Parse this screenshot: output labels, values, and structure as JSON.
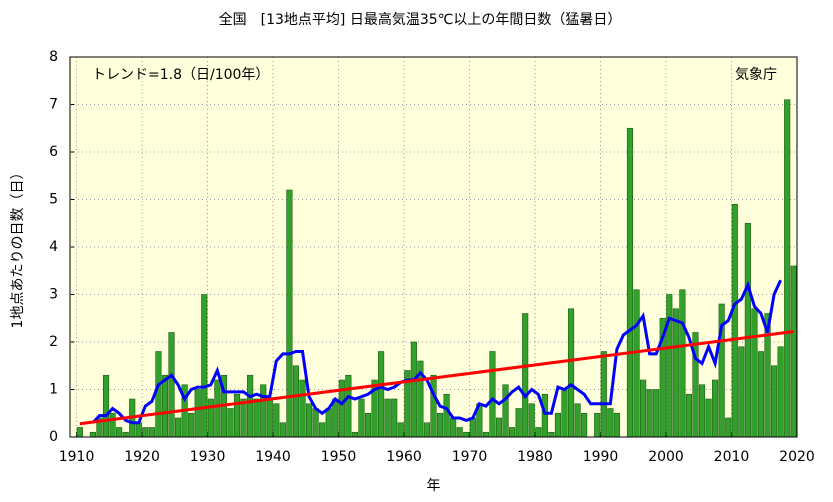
{
  "chart_data": {
    "type": "bar",
    "title": "全国　[13地点平均] 日最高気温35℃以上の年間日数（猛暑日）",
    "xlabel": "年",
    "ylabel": "1地点あたりの日数（日）",
    "annotations": [
      "トレンド=1.8（日/100年）",
      "気象庁"
    ],
    "x": [
      1910,
      1911,
      1912,
      1913,
      1914,
      1915,
      1916,
      1917,
      1918,
      1919,
      1920,
      1921,
      1922,
      1923,
      1924,
      1925,
      1926,
      1927,
      1928,
      1929,
      1930,
      1931,
      1932,
      1933,
      1934,
      1935,
      1936,
      1937,
      1938,
      1939,
      1940,
      1941,
      1942,
      1943,
      1944,
      1945,
      1946,
      1947,
      1948,
      1949,
      1950,
      1951,
      1952,
      1953,
      1954,
      1955,
      1956,
      1957,
      1958,
      1959,
      1960,
      1961,
      1962,
      1963,
      1964,
      1965,
      1966,
      1967,
      1968,
      1969,
      1970,
      1971,
      1972,
      1973,
      1974,
      1975,
      1976,
      1977,
      1978,
      1979,
      1980,
      1981,
      1982,
      1983,
      1984,
      1985,
      1986,
      1987,
      1988,
      1989,
      1990,
      1991,
      1992,
      1993,
      1994,
      1995,
      1996,
      1997,
      1998,
      1999,
      2000,
      2001,
      2002,
      2003,
      2004,
      2005,
      2006,
      2007,
      2008,
      2009,
      2010,
      2011,
      2012,
      2013,
      2014,
      2015,
      2016,
      2017,
      2018,
      2019
    ],
    "bars": {
      "color": "#33a02c",
      "edge": "#1a5c16",
      "values": [
        0.2,
        0,
        0.1,
        0.4,
        1.3,
        0.5,
        0.2,
        0.1,
        0.8,
        0.3,
        0.2,
        0.2,
        1.8,
        1.3,
        2.2,
        0.4,
        1.1,
        0.5,
        1.0,
        3.0,
        0.8,
        1.2,
        1.3,
        0.6,
        0.9,
        0.8,
        1.3,
        0.8,
        1.1,
        0.8,
        0.7,
        0.3,
        5.2,
        1.5,
        1.2,
        0.7,
        0.6,
        0.3,
        0.6,
        0.8,
        1.2,
        1.3,
        0.1,
        0.8,
        0.5,
        1.2,
        1.8,
        0.8,
        0.8,
        0.3,
        1.4,
        2.0,
        1.6,
        0.3,
        1.3,
        0.5,
        0.9,
        0.4,
        0.2,
        0.1,
        0.4,
        0.7,
        0.1,
        1.8,
        0.4,
        1.1,
        0.2,
        0.6,
        2.6,
        0.7,
        0.2,
        0.9,
        0.1,
        0.5,
        1.0,
        2.7,
        0.7,
        0.5,
        0,
        0.5,
        1.8,
        0.6,
        0.5,
        0,
        6.5,
        3.1,
        1.2,
        1.0,
        1.0,
        2.5,
        3.0,
        2.7,
        3.1,
        0.9,
        2.2,
        1.1,
        0.8,
        1.2,
        2.8,
        0.4,
        4.9,
        1.9,
        4.5,
        2.7,
        1.8,
        2.6,
        1.5,
        1.9,
        7.1,
        3.6
      ]
    },
    "moving_average": {
      "color": "#0000ff",
      "values": [
        null,
        null,
        0.3,
        0.45,
        0.45,
        0.6,
        0.5,
        0.35,
        0.3,
        0.3,
        0.65,
        0.75,
        1.1,
        1.2,
        1.3,
        1.1,
        0.8,
        1.0,
        1.05,
        1.05,
        1.1,
        1.4,
        0.95,
        0.95,
        0.95,
        0.95,
        0.85,
        0.9,
        0.85,
        0.85,
        1.6,
        1.75,
        1.75,
        1.8,
        1.8,
        0.85,
        0.6,
        0.5,
        0.6,
        0.8,
        0.7,
        0.85,
        0.8,
        0.85,
        0.9,
        1.0,
        1.05,
        1.0,
        1.05,
        1.15,
        1.2,
        1.2,
        1.35,
        1.2,
        0.9,
        0.65,
        0.6,
        0.4,
        0.4,
        0.35,
        0.4,
        0.7,
        0.65,
        0.8,
        0.7,
        0.8,
        0.95,
        1.05,
        0.85,
        1.0,
        0.9,
        0.5,
        0.5,
        1.05,
        1.0,
        1.1,
        1.0,
        0.9,
        0.7,
        0.7,
        0.7,
        0.7,
        1.85,
        2.15,
        2.25,
        2.35,
        2.55,
        1.75,
        1.75,
        2.1,
        2.5,
        2.45,
        2.4,
        2.1,
        1.65,
        1.55,
        1.9,
        1.55,
        2.35,
        2.45,
        2.8,
        2.9,
        3.2,
        2.75,
        2.6,
        2.2,
        3.0,
        3.3,
        null,
        null
      ]
    },
    "trend": {
      "color": "#ff0000",
      "x": [
        1910,
        2019
      ],
      "values": [
        0.28,
        2.22
      ]
    },
    "xlim": [
      1909,
      2020
    ],
    "xticks": [
      1910,
      1920,
      1930,
      1940,
      1950,
      1960,
      1970,
      1980,
      1990,
      2000,
      2010,
      2020
    ],
    "ylim": [
      0,
      8
    ],
    "yticks": [
      0,
      1,
      2,
      3,
      4,
      5,
      6,
      7,
      8
    ],
    "grid": true,
    "background": "#ffffdc"
  }
}
